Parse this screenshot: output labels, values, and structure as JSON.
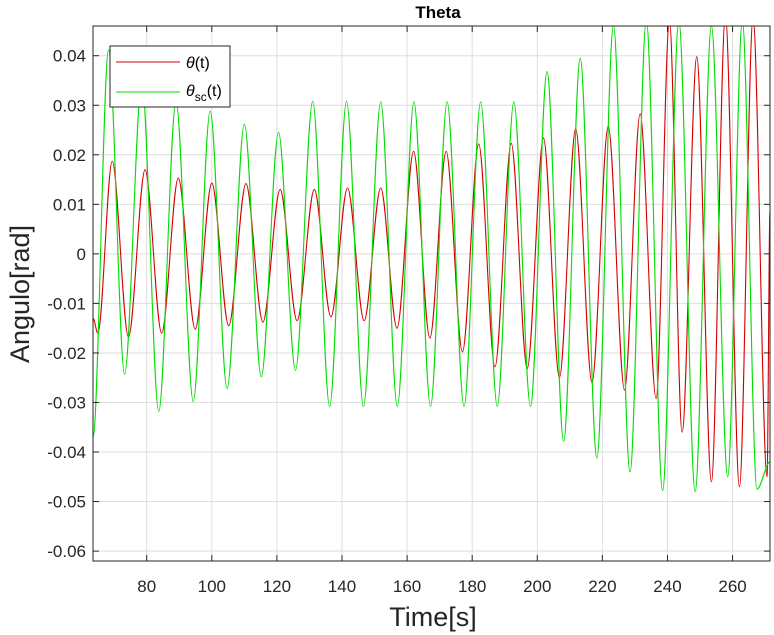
{
  "chart_data": {
    "type": "line",
    "title": "Theta",
    "xlabel": "Time[s]",
    "ylabel": "Angulo[rad]",
    "xlim": [
      63.5,
      271.5
    ],
    "ylim": [
      -0.062,
      0.046
    ],
    "xticks": [
      80,
      100,
      120,
      140,
      160,
      180,
      200,
      220,
      240,
      260
    ],
    "xtick_labels": [
      "80",
      "100",
      "120",
      "140",
      "160",
      "180",
      "200",
      "220",
      "240",
      "260"
    ],
    "yticks": [
      -0.06,
      -0.05,
      -0.04,
      -0.03,
      -0.02,
      -0.01,
      0,
      0.01,
      0.02,
      0.03,
      0.04
    ],
    "ytick_labels": [
      "-0.06",
      "-0.05",
      "-0.04",
      "-0.03",
      "-0.02",
      "-0.01",
      "0",
      "0.01",
      "0.02",
      "0.03",
      "0.04"
    ],
    "grid": true,
    "legend_position": "top-left",
    "series": [
      {
        "name_main": "θ",
        "name_sub": "",
        "name_suffix": "(t)",
        "color": "#d40000",
        "x": [
          63.5,
          65.0,
          69.4,
          74.4,
          79.5,
          84.6,
          89.7,
          94.9,
          100.0,
          105.2,
          110.5,
          115.7,
          121.0,
          126.2,
          131.5,
          136.6,
          141.7,
          146.8,
          151.9,
          156.9,
          162.0,
          167.0,
          172.0,
          177.0,
          182.0,
          187.0,
          192.0,
          196.9,
          201.9,
          206.8,
          211.8,
          216.8,
          221.8,
          226.8,
          231.6,
          236.5,
          240.6,
          244.5,
          249.0,
          253.5,
          257.8,
          262.1,
          266.3,
          270.6,
          271.5
        ],
        "y": [
          -0.013,
          -0.016,
          0.0187,
          -0.0168,
          0.017,
          -0.016,
          0.0153,
          -0.0152,
          0.0143,
          -0.0145,
          0.0142,
          -0.0138,
          0.013,
          -0.0135,
          0.013,
          -0.0127,
          0.0133,
          -0.0135,
          0.0133,
          -0.015,
          0.0207,
          -0.017,
          0.0207,
          -0.0198,
          0.0222,
          -0.0228,
          0.0223,
          -0.0232,
          0.0234,
          -0.025,
          0.0253,
          -0.026,
          0.0258,
          -0.0275,
          0.0283,
          -0.0292,
          0.047,
          -0.036,
          0.0398,
          -0.046,
          0.048,
          -0.047,
          0.0475,
          -0.045,
          0.009
        ]
      },
      {
        "name_main": "θ",
        "name_sub": "sc",
        "name_suffix": "(t)",
        "color": "#00dd00",
        "x": [
          63.5,
          68.3,
          73.2,
          78.5,
          83.7,
          89.0,
          94.3,
          99.5,
          104.7,
          110.0,
          115.2,
          120.5,
          125.7,
          131.0,
          136.2,
          141.4,
          146.6,
          151.9,
          157.0,
          162.1,
          167.2,
          172.3,
          177.5,
          182.6,
          187.7,
          192.8,
          197.9,
          203.0,
          208.1,
          213.2,
          218.3,
          223.4,
          228.5,
          233.5,
          238.5,
          243.5,
          248.5,
          253.5,
          258.5,
          263.0,
          267.5,
          271.5
        ],
        "y": [
          -0.037,
          0.0412,
          -0.0243,
          0.0346,
          -0.0318,
          0.0308,
          -0.0298,
          0.0288,
          -0.0272,
          0.0262,
          -0.0248,
          0.0245,
          -0.0235,
          0.0308,
          -0.0308,
          0.0308,
          -0.0308,
          0.0307,
          -0.0308,
          0.0307,
          -0.0308,
          0.0307,
          -0.0308,
          0.0307,
          -0.0308,
          0.0307,
          -0.0308,
          0.0368,
          -0.0378,
          0.0395,
          -0.0412,
          0.046,
          -0.044,
          0.047,
          -0.0478,
          0.047,
          -0.048,
          0.046,
          -0.045,
          0.047,
          -0.0475,
          -0.042
        ]
      }
    ]
  }
}
